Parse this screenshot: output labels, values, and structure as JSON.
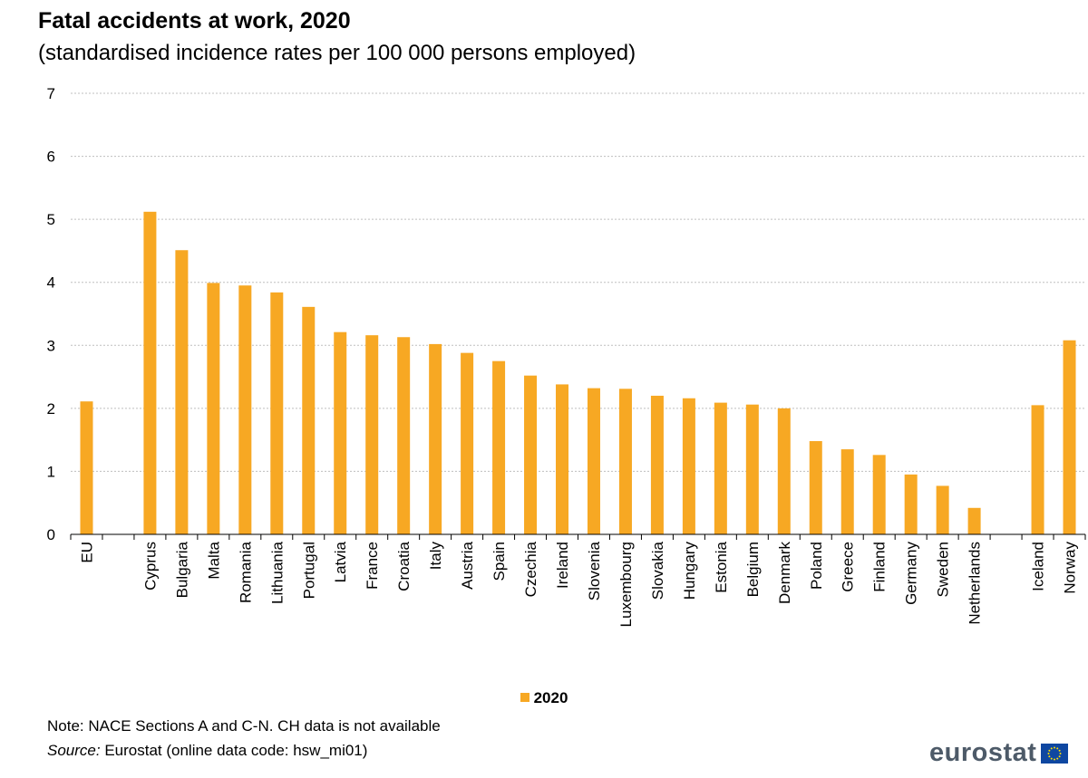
{
  "header": {
    "title": "Fatal accidents at work, 2020",
    "subtitle": "(standardised incidence rates per 100 000 persons employed)"
  },
  "legend": {
    "label": "2020"
  },
  "footer": {
    "note": "Note: NACE Sections A and C-N. CH data is not available",
    "source_label": "Source:",
    "source_text": " Eurostat (online data code: hsw_mi01)",
    "logo_text": "eurostat"
  },
  "colors": {
    "bar": "#f7a823",
    "grid": "#bfbfbf",
    "axis": "#000000",
    "logo_text": "#4d5a68",
    "flag_blue": "#0e47a1",
    "flag_stars": "#ffdd00"
  },
  "chart_data": {
    "type": "bar",
    "title": "Fatal accidents at work, 2020",
    "subtitle": "(standardised incidence rates per 100 000 persons employed)",
    "xlabel": "",
    "ylabel": "",
    "ylim": [
      0,
      7
    ],
    "yticks": [
      0,
      1,
      2,
      3,
      4,
      5,
      6,
      7
    ],
    "grid": true,
    "legend_position": "bottom",
    "categories": [
      "EU",
      "",
      "Cyprus",
      "Bulgaria",
      "Malta",
      "Romania",
      "Lithuania",
      "Portugal",
      "Latvia",
      "France",
      "Croatia",
      "Italy",
      "Austria",
      "Spain",
      "Czechia",
      "Ireland",
      "Slovenia",
      "Luxembourg",
      "Slovakia",
      "Hungary",
      "Estonia",
      "Belgium",
      "Denmark",
      "Poland",
      "Greece",
      "Finland",
      "Germany",
      "Sweden",
      "Netherlands",
      "",
      "Iceland",
      "Norway"
    ],
    "series": [
      {
        "name": "2020",
        "values": [
          2.11,
          null,
          5.12,
          4.51,
          3.99,
          3.95,
          3.84,
          3.61,
          3.21,
          3.16,
          3.13,
          3.02,
          2.88,
          2.75,
          2.52,
          2.38,
          2.32,
          2.31,
          2.2,
          2.16,
          2.09,
          2.06,
          2.0,
          1.48,
          1.35,
          1.26,
          0.95,
          0.77,
          0.42,
          null,
          2.05,
          3.08
        ]
      }
    ]
  }
}
